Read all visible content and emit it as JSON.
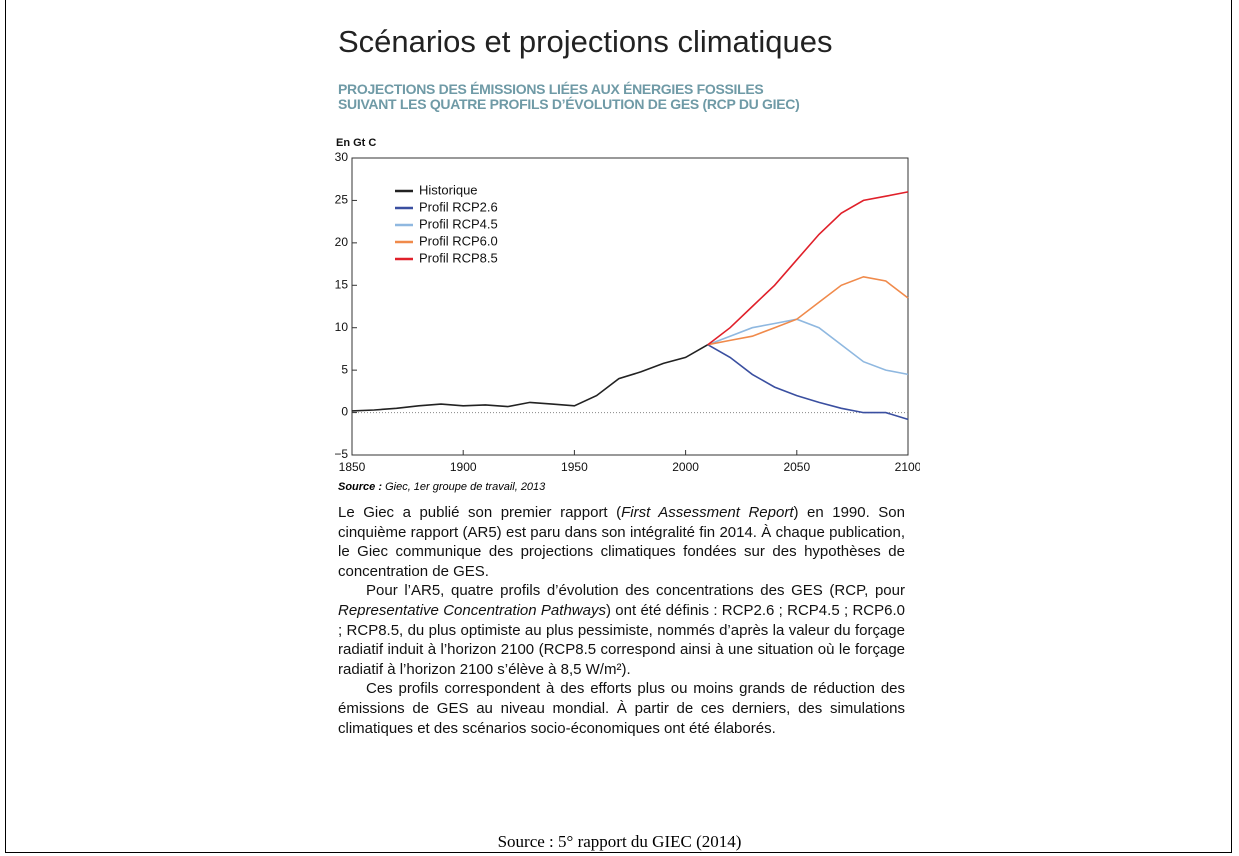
{
  "header": {
    "title": "Scénarios et projections climatiques",
    "subtitle": [
      "PROJECTIONS DES ÉMISSIONS LIÉES AUX ÉNERGIES FOSSILES",
      "SUIVANT LES QUATRE PROFILS D’ÉVOLUTION DE GES (RCP DU GIEC)"
    ]
  },
  "chart_data": {
    "type": "line",
    "y_label": "En Gt C",
    "x": [
      1850,
      1860,
      1870,
      1880,
      1890,
      1900,
      1910,
      1920,
      1930,
      1940,
      1950,
      1960,
      1970,
      1980,
      1990,
      2000,
      2010,
      2020,
      2030,
      2040,
      2050,
      2060,
      2070,
      2080,
      2090,
      2100
    ],
    "xlim": [
      1850,
      2100
    ],
    "xticks": [
      1850,
      1900,
      1950,
      2000,
      2050,
      2100
    ],
    "ylim": [
      -5,
      30
    ],
    "yticks": [
      {
        "value": -5,
        "label": "−5"
      },
      0,
      5,
      10,
      15,
      20,
      25,
      30
    ],
    "legend": "upper left",
    "series": [
      {
        "name": "Historique",
        "color": "#222222",
        "values": [
          0.2,
          0.3,
          0.5,
          0.8,
          1.0,
          0.8,
          0.9,
          0.7,
          1.2,
          1.0,
          0.8,
          2.0,
          4.0,
          4.8,
          5.8,
          6.5,
          8.0,
          null,
          null,
          null,
          null,
          null,
          null,
          null,
          null,
          null
        ]
      },
      {
        "name": "Profil RCP2.6",
        "color": "#3a4fa0",
        "values": [
          null,
          null,
          null,
          null,
          null,
          null,
          null,
          null,
          null,
          null,
          null,
          null,
          null,
          null,
          null,
          null,
          8.0,
          6.5,
          4.5,
          3.0,
          2.0,
          1.2,
          0.5,
          0.0,
          0.0,
          -0.8
        ]
      },
      {
        "name": "Profil RCP4.5",
        "color": "#8fb8e0",
        "values": [
          null,
          null,
          null,
          null,
          null,
          null,
          null,
          null,
          null,
          null,
          null,
          null,
          null,
          null,
          null,
          null,
          8.0,
          9.0,
          10.0,
          10.5,
          11.0,
          10.0,
          8.0,
          6.0,
          5.0,
          4.5
        ]
      },
      {
        "name": "Profil RCP6.0",
        "color": "#f08a4b",
        "values": [
          null,
          null,
          null,
          null,
          null,
          null,
          null,
          null,
          null,
          null,
          null,
          null,
          null,
          null,
          null,
          null,
          8.0,
          8.5,
          9.0,
          10.0,
          11.0,
          13.0,
          15.0,
          16.0,
          15.5,
          13.5
        ]
      },
      {
        "name": "Profil RCP8.5",
        "color": "#e0202a",
        "values": [
          null,
          null,
          null,
          null,
          null,
          null,
          null,
          null,
          null,
          null,
          null,
          null,
          null,
          null,
          null,
          null,
          8.0,
          10.0,
          12.5,
          15.0,
          18.0,
          21.0,
          23.5,
          25.0,
          25.5,
          26.0
        ]
      }
    ]
  },
  "chart_source": {
    "label": "Source :",
    "text": "Giec, 1er groupe de travail, 2013"
  },
  "paragraphs": [
    [
      {
        "text": "Le Giec a publié son premier rapport ("
      },
      {
        "text": "First Assessment Report",
        "italic": true
      },
      {
        "text": ") en 1990. Son cinquième rapport (AR5) est paru dans son intégralité fin 2014. À chaque publication, le Giec communique des projections climatiques fondées sur des hypothèses de concentration de GES."
      }
    ],
    [
      {
        "text": "Pour l’AR5, quatre profils d’évolution des concentrations des GES (RCP, pour "
      },
      {
        "text": "Representative Concentration Pathways",
        "italic": true
      },
      {
        "text": ") ont été définis : RCP2.6 ; RCP4.5 ; RCP6.0 ; RCP8.5, du plus optimiste au plus pessimiste, nommés d’après la valeur du forçage radiatif induit à l’horizon 2100 (RCP8.5 correspond ainsi à une situation où le forçage radiatif à l’horizon 2100 s’élève à 8,5 W/m²)."
      }
    ],
    [
      {
        "text": "Ces profils correspondent à des efforts plus ou moins grands de réduction des émissions de GES au niveau mondial. À partir de ces derniers, des simulations climatiques et des scénarios socio-économiques ont été élaborés."
      }
    ]
  ],
  "footer": "Source : 5° rapport du GIEC (2014)"
}
